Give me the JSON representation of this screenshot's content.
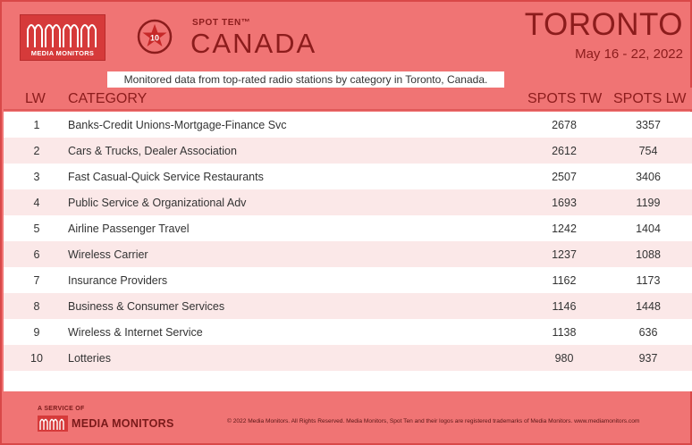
{
  "header": {
    "logo_text": "MEDIA MONITORS",
    "badge_number": "10",
    "spot_ten_label": "SPOT TEN™",
    "country": "CANADA",
    "city": "TORONTO",
    "date_range": "May 16 - 22, 2022"
  },
  "subtitle": "Monitored data from top-rated radio stations by category in Toronto, Canada.",
  "table": {
    "columns": {
      "lw": "LW",
      "category": "CATEGORY",
      "spots_tw": "SPOTS TW",
      "spots_lw": "SPOTS LW"
    },
    "rows": [
      {
        "lw": "1",
        "category": "Banks-Credit Unions-Mortgage-Finance Svc",
        "spots_tw": "2678",
        "spots_lw": "3357"
      },
      {
        "lw": "2",
        "category": "Cars & Trucks, Dealer Association",
        "spots_tw": "2612",
        "spots_lw": "754"
      },
      {
        "lw": "3",
        "category": "Fast Casual-Quick Service Restaurants",
        "spots_tw": "2507",
        "spots_lw": "3406"
      },
      {
        "lw": "4",
        "category": "Public Service & Organizational Adv",
        "spots_tw": "1693",
        "spots_lw": "1199"
      },
      {
        "lw": "5",
        "category": "Airline Passenger Travel",
        "spots_tw": "1242",
        "spots_lw": "1404"
      },
      {
        "lw": "6",
        "category": "Wireless Carrier",
        "spots_tw": "1237",
        "spots_lw": "1088"
      },
      {
        "lw": "7",
        "category": "Insurance Providers",
        "spots_tw": "1162",
        "spots_lw": "1173"
      },
      {
        "lw": "8",
        "category": "Business & Consumer Services",
        "spots_tw": "1146",
        "spots_lw": "1448"
      },
      {
        "lw": "9",
        "category": "Wireless & Internet Service",
        "spots_tw": "1138",
        "spots_lw": "636"
      },
      {
        "lw": "10",
        "category": "Lotteries",
        "spots_tw": "980",
        "spots_lw": "937"
      }
    ]
  },
  "footer": {
    "service_label": "A SERVICE OF",
    "logo_text": "MEDIA MONITORS",
    "copyright": "© 2022 Media Monitors. All Rights Reserved. Media Monitors, Spot Ten and their logos are registered trademarks of Media Monitors. www.mediamonitors.com"
  },
  "colors": {
    "background": "#f07474",
    "title_text": "#8c1c1c",
    "logo_red": "#d63a3a",
    "row_stripe": "#fbe8e8"
  },
  "icons": {
    "header_logo": "media-monitors-wave-logo",
    "badge": "star-badge-icon",
    "footer_logo": "media-monitors-wave-logo"
  }
}
